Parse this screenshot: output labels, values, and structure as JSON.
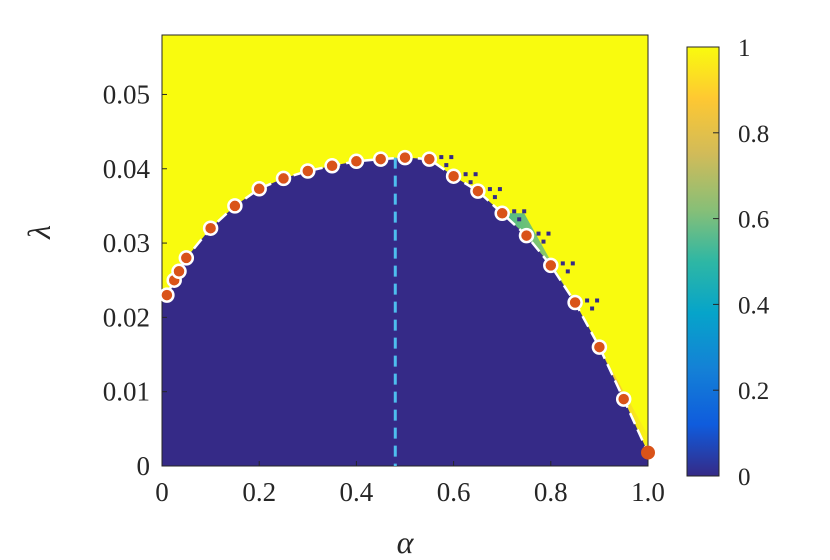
{
  "chart_data": {
    "type": "heatmap",
    "title": "",
    "xlabel": "α",
    "ylabel": "λ",
    "xlim": [
      0,
      1
    ],
    "ylim": [
      0,
      0.058
    ],
    "x_ticks": [
      "0",
      "0.2",
      "0.4",
      "0.6",
      "0.8",
      "1.0"
    ],
    "y_ticks": [
      "0",
      "0.01",
      "0.02",
      "0.03",
      "0.04",
      "0.05"
    ],
    "colorbar": {
      "range": [
        0,
        1
      ],
      "ticks": [
        "0",
        "0.2",
        "0.4",
        "0.6",
        "0.8",
        "1"
      ],
      "colormap": "parula"
    },
    "heatmap_regions": {
      "below_boundary_value": 0,
      "above_boundary_value": 1
    },
    "series": [
      {
        "kind": "boundary-markers",
        "style": "dashed-line-with-circles",
        "color": "#d95319",
        "x": [
          0.01,
          0.025,
          0.035,
          0.05,
          0.1,
          0.15,
          0.2,
          0.25,
          0.3,
          0.35,
          0.4,
          0.45,
          0.5,
          0.55,
          0.6,
          0.65,
          0.7,
          0.75,
          0.8,
          0.85,
          0.9,
          0.95,
          1.0
        ],
        "y": [
          0.023,
          0.025,
          0.0262,
          0.028,
          0.032,
          0.035,
          0.0373,
          0.0387,
          0.0397,
          0.0404,
          0.041,
          0.0413,
          0.0415,
          0.0413,
          0.039,
          0.037,
          0.034,
          0.031,
          0.027,
          0.022,
          0.016,
          0.009,
          0.0018
        ]
      },
      {
        "kind": "vertical-reference",
        "style": "dashed",
        "color": "#4dbeee",
        "x": 0.48,
        "y_top": 0.0415
      }
    ]
  }
}
